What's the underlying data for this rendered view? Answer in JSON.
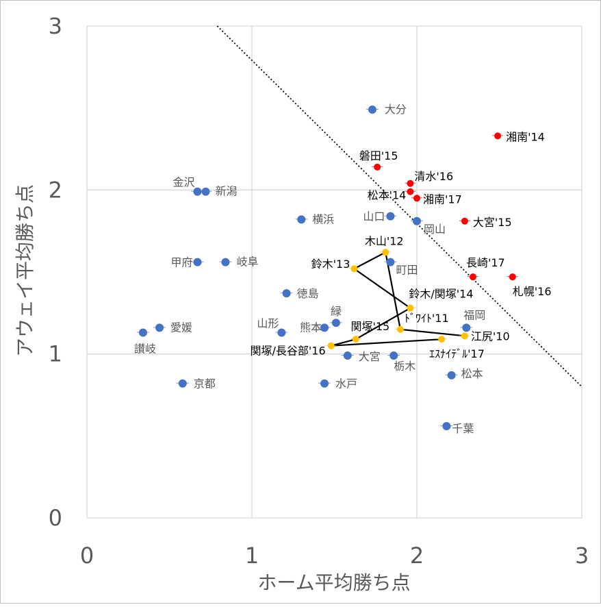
{
  "chart_data": {
    "type": "scatter",
    "xlabel": "ホーム平均勝ち点",
    "ylabel": "アウェイ平均勝ち点",
    "xlim": [
      0,
      3
    ],
    "ylim": [
      0,
      3
    ],
    "x_ticks": [
      "0",
      "1",
      "2",
      "3"
    ],
    "y_ticks": [
      "0",
      "1",
      "2",
      "3"
    ],
    "grid": true,
    "colors": {
      "blue": "#4472C4",
      "red": "#FF0000",
      "yellow": "#FFC000",
      "line": "#000000",
      "grid": "#D9D9D9"
    },
    "reference_line": {
      "from": [
        0.79,
        3.0
      ],
      "to": [
        3.0,
        0.8
      ]
    },
    "series": [
      {
        "color": "blue",
        "points": [
          {
            "label": "大分",
            "x": 1.73,
            "y": 2.49
          },
          {
            "label": "金沢",
            "x": 0.67,
            "y": 1.99
          },
          {
            "label": "新潟",
            "x": 0.72,
            "y": 1.99
          },
          {
            "label": "横浜",
            "x": 1.3,
            "y": 1.82
          },
          {
            "label": "山口",
            "x": 1.84,
            "y": 1.84
          },
          {
            "label": "岡山",
            "x": 2.0,
            "y": 1.81
          },
          {
            "label": "甲府",
            "x": 0.67,
            "y": 1.56
          },
          {
            "label": "岐阜",
            "x": 0.84,
            "y": 1.56
          },
          {
            "label": "町田",
            "x": 1.84,
            "y": 1.56
          },
          {
            "label": "徳島",
            "x": 1.21,
            "y": 1.37
          },
          {
            "label": "緑",
            "x": 1.51,
            "y": 1.19
          },
          {
            "label": "熊本",
            "x": 1.44,
            "y": 1.16
          },
          {
            "label": "山形",
            "x": 1.18,
            "y": 1.13
          },
          {
            "label": "愛媛",
            "x": 0.44,
            "y": 1.16
          },
          {
            "label": "讃岐",
            "x": 0.34,
            "y": 1.13
          },
          {
            "label": "福岡",
            "x": 2.3,
            "y": 1.16
          },
          {
            "label": "大宮",
            "x": 1.58,
            "y": 0.99
          },
          {
            "label": "栃木",
            "x": 1.86,
            "y": 0.99
          },
          {
            "label": "京都",
            "x": 0.58,
            "y": 0.82
          },
          {
            "label": "水戸",
            "x": 1.44,
            "y": 0.82
          },
          {
            "label": "松本",
            "x": 2.21,
            "y": 0.87
          },
          {
            "label": "千葉",
            "x": 2.18,
            "y": 0.56
          }
        ]
      },
      {
        "color": "red",
        "points": [
          {
            "label": "湘南'14",
            "x": 2.49,
            "y": 2.33
          },
          {
            "label": "磐田'15",
            "x": 1.76,
            "y": 2.14
          },
          {
            "label": "清水'16",
            "x": 1.96,
            "y": 2.04
          },
          {
            "label": "松本'14",
            "x": 1.96,
            "y": 1.99
          },
          {
            "label": "湘南'17",
            "x": 2.0,
            "y": 1.95
          },
          {
            "label": "大宮'15",
            "x": 2.29,
            "y": 1.81
          },
          {
            "label": "長崎'17",
            "x": 2.34,
            "y": 1.47
          },
          {
            "label": "札幌'16",
            "x": 2.58,
            "y": 1.47
          }
        ]
      },
      {
        "color": "yellow",
        "points": [
          {
            "label": "木山'12",
            "x": 1.81,
            "y": 1.62
          },
          {
            "label": "鈴木'13",
            "x": 1.62,
            "y": 1.52
          },
          {
            "label": "鈴木/関塚'14",
            "x": 1.96,
            "y": 1.28
          },
          {
            "label": "ﾄﾞﾜｲﾄ'11",
            "x": 1.9,
            "y": 1.15
          },
          {
            "label": "関塚'15",
            "x": 1.63,
            "y": 1.09
          },
          {
            "label": "関塚/長谷部'16",
            "x": 1.48,
            "y": 1.05
          },
          {
            "label": "江尻'10",
            "x": 2.29,
            "y": 1.11
          },
          {
            "label": "ｴｽﾅｲﾃﾞﾙ'17",
            "x": 2.15,
            "y": 1.09
          }
        ]
      }
    ],
    "path_order": [
      "江尻'10",
      "ﾄﾞﾜｲﾄ'11",
      "木山'12",
      "鈴木'13",
      "鈴木/関塚'14",
      "関塚'15",
      "関塚/長谷部'16",
      "ｴｽﾅｲﾃﾞﾙ'17"
    ]
  }
}
